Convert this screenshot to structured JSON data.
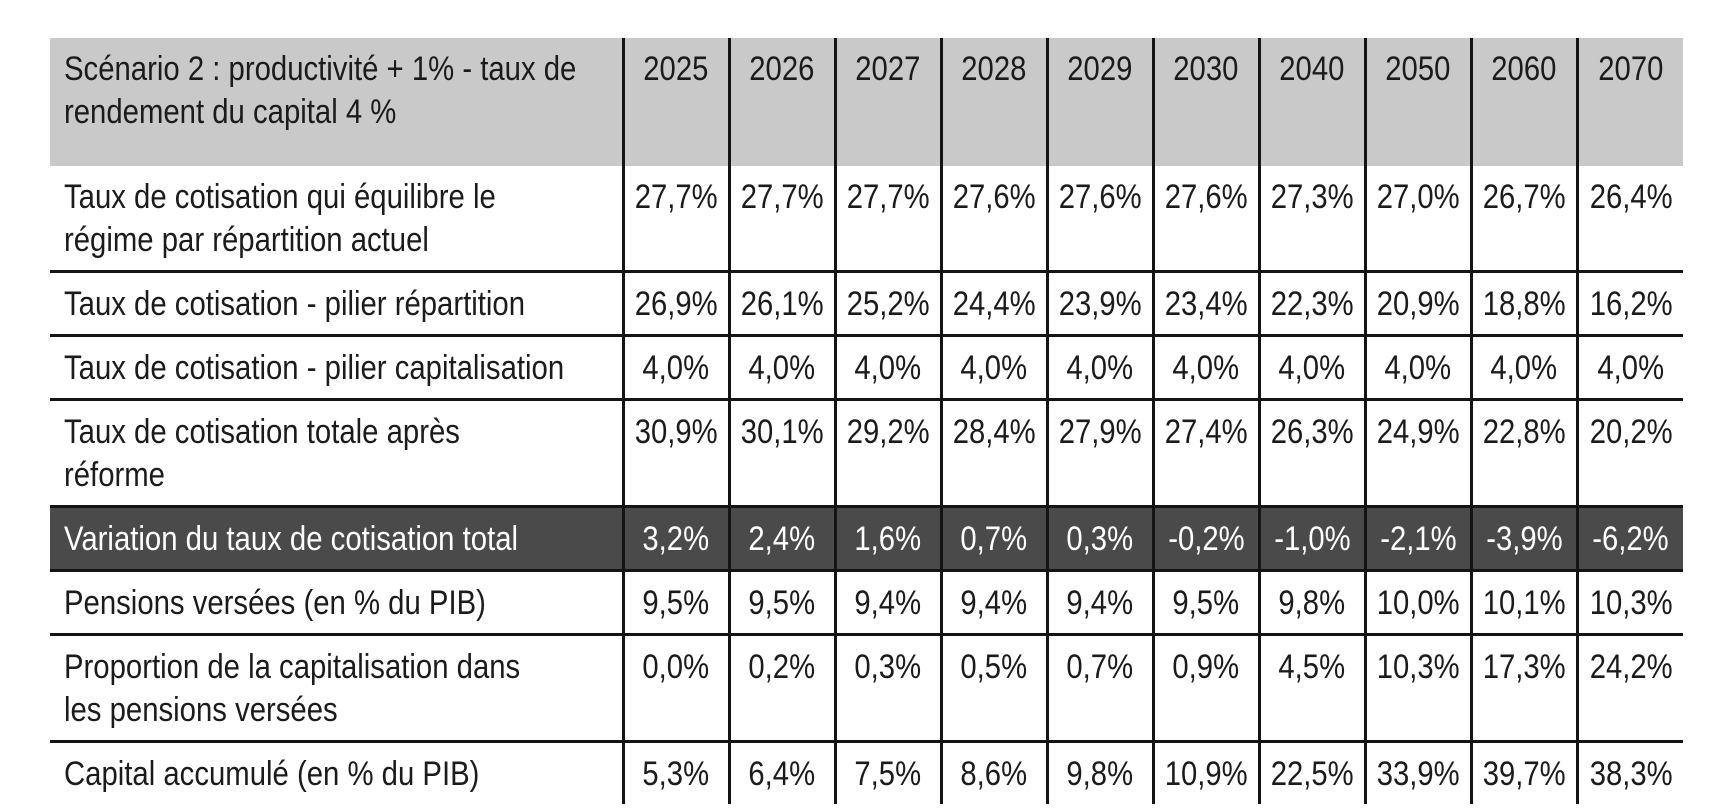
{
  "table": {
    "header": {
      "label": "Scénario 2 : productivité + 1% - taux de\nrendement du capital 4 %",
      "years": [
        "2025",
        "2026",
        "2027",
        "2028",
        "2029",
        "2030",
        "2040",
        "2050",
        "2060",
        "2070"
      ]
    },
    "rows": [
      {
        "label": "Taux de cotisation qui équilibre le\nrégime par répartition actuel",
        "variant": "normal",
        "values": [
          "27,7%",
          "27,7%",
          "27,7%",
          "27,6%",
          "27,6%",
          "27,6%",
          "27,3%",
          "27,0%",
          "26,7%",
          "26,4%"
        ]
      },
      {
        "label": "Taux de cotisation - pilier répartition",
        "variant": "normal",
        "values": [
          "26,9%",
          "26,1%",
          "25,2%",
          "24,4%",
          "23,9%",
          "23,4%",
          "22,3%",
          "20,9%",
          "18,8%",
          "16,2%"
        ]
      },
      {
        "label": "Taux de cotisation - pilier capitalisation",
        "variant": "normal",
        "values": [
          "4,0%",
          "4,0%",
          "4,0%",
          "4,0%",
          "4,0%",
          "4,0%",
          "4,0%",
          "4,0%",
          "4,0%",
          "4,0%"
        ]
      },
      {
        "label": "Taux de cotisation totale après\nréforme",
        "variant": "normal",
        "values": [
          "30,9%",
          "30,1%",
          "29,2%",
          "28,4%",
          "27,9%",
          "27,4%",
          "26,3%",
          "24,9%",
          "22,8%",
          "20,2%"
        ]
      },
      {
        "label": "Variation du taux de cotisation total",
        "variant": "highlight",
        "values": [
          "3,2%",
          "2,4%",
          "1,6%",
          "0,7%",
          "0,3%",
          "-0,2%",
          "-1,0%",
          "-2,1%",
          "-3,9%",
          "-6,2%"
        ]
      },
      {
        "label": "Pensions versées (en % du PIB)",
        "variant": "normal",
        "values": [
          "9,5%",
          "9,5%",
          "9,4%",
          "9,4%",
          "9,4%",
          "9,5%",
          "9,8%",
          "10,0%",
          "10,1%",
          "10,3%"
        ]
      },
      {
        "label": "Proportion de la capitalisation dans\nles pensions versées",
        "variant": "normal",
        "values": [
          "0,0%",
          "0,2%",
          "0,3%",
          "0,5%",
          "0,7%",
          "0,9%",
          "4,5%",
          "10,3%",
          "17,3%",
          "24,2%"
        ]
      },
      {
        "label": "Capital accumulé (en % du PIB)",
        "variant": "normal",
        "values": [
          "5,3%",
          "6,4%",
          "7,5%",
          "8,6%",
          "9,8%",
          "10,9%",
          "22,5%",
          "33,9%",
          "39,7%",
          "38,3%"
        ]
      }
    ],
    "colors": {
      "header_bg": "#c9c9c9",
      "highlight_bg": "#4a4a4a",
      "highlight_text": "#ffffff",
      "border": "#141414",
      "text": "#1b1b1b"
    }
  }
}
